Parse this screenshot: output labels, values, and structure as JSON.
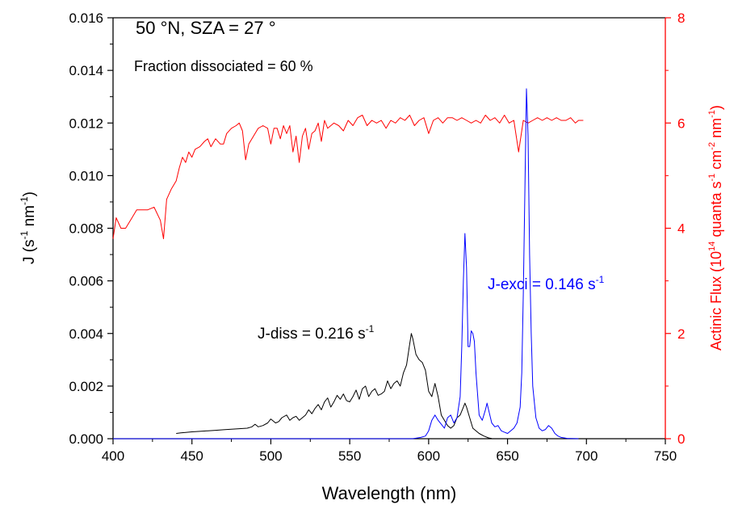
{
  "chart_data": {
    "type": "line",
    "annotations": {
      "title": "50 °N, SZA = 27 °",
      "fraction": "Fraction dissociated = 60 %",
      "jdiss_text": "J-diss = 0.216 s",
      "jdiss_sup": "-1",
      "jexci_text": "J-exci = 0.146 s",
      "jexci_sup": "-1"
    },
    "xaxis": {
      "label": "Wavelength (nm)",
      "lim": [
        400,
        750
      ],
      "ticks": [
        "400",
        "450",
        "500",
        "550",
        "600",
        "650",
        "700",
        "750"
      ]
    },
    "yaxis_left": {
      "label_main": "J (s",
      "label_sup1": "-1",
      "label_mid": " nm",
      "label_sup2": "-1",
      "label_end": ")",
      "lim": [
        0,
        0.016
      ],
      "ticks": [
        "0.000",
        "0.002",
        "0.004",
        "0.006",
        "0.008",
        "0.010",
        "0.012",
        "0.014",
        "0.016"
      ]
    },
    "yaxis_right": {
      "label_a": "Actinic Flux (10",
      "label_sup1": "14",
      "label_b": " quanta s",
      "label_sup2": "-1",
      "label_c": " cm",
      "label_sup3": "-2",
      "label_d": " nm",
      "label_sup4": "-1",
      "label_e": ")",
      "lim": [
        0,
        8
      ],
      "ticks": [
        "0",
        "2",
        "4",
        "6",
        "8"
      ],
      "color": "#ff0000"
    },
    "series": [
      {
        "axis": "right",
        "color": "#ff0000",
        "x": [
          400,
          402,
          405,
          408,
          412,
          415,
          418,
          422,
          426,
          430,
          432,
          434,
          437,
          440,
          442,
          444,
          446,
          448,
          450,
          452,
          455,
          458,
          460,
          462,
          465,
          468,
          470,
          472,
          475,
          478,
          480,
          482,
          484,
          486,
          488,
          490,
          492,
          495,
          498,
          500,
          502,
          504,
          506,
          508,
          510,
          512,
          514,
          516,
          518,
          520,
          522,
          524,
          526,
          528,
          530,
          532,
          534,
          536,
          538,
          540,
          543,
          546,
          549,
          552,
          555,
          558,
          561,
          564,
          567,
          570,
          573,
          576,
          579,
          582,
          585,
          588,
          591,
          594,
          597,
          600,
          603,
          606,
          609,
          612,
          615,
          618,
          621,
          624,
          627,
          630,
          633,
          636,
          639,
          642,
          645,
          648,
          651,
          654,
          657,
          660,
          663,
          666,
          669,
          672,
          675,
          678,
          681,
          684,
          687,
          690,
          693,
          695,
          698
        ],
        "y": [
          3.8,
          4.2,
          4.0,
          4.0,
          4.2,
          4.35,
          4.35,
          4.35,
          4.4,
          4.15,
          3.8,
          4.55,
          4.75,
          4.9,
          5.15,
          5.35,
          5.25,
          5.45,
          5.35,
          5.5,
          5.55,
          5.65,
          5.7,
          5.55,
          5.7,
          5.6,
          5.6,
          5.8,
          5.9,
          5.95,
          6.0,
          5.85,
          5.3,
          5.6,
          5.7,
          5.8,
          5.9,
          5.95,
          5.9,
          5.6,
          5.9,
          5.9,
          5.7,
          5.95,
          5.8,
          5.95,
          5.45,
          5.75,
          5.25,
          5.75,
          5.9,
          5.5,
          5.8,
          5.85,
          6.0,
          5.65,
          6.05,
          5.9,
          5.95,
          6.0,
          5.95,
          5.85,
          6.05,
          5.95,
          6.1,
          6.15,
          5.95,
          6.05,
          6.0,
          6.05,
          5.9,
          6.05,
          6.0,
          6.1,
          6.05,
          6.15,
          5.95,
          6.05,
          6.1,
          5.8,
          6.05,
          6.1,
          6.0,
          6.1,
          6.1,
          6.05,
          6.1,
          6.05,
          6.0,
          6.05,
          6.0,
          6.15,
          6.05,
          6.1,
          6.0,
          6.15,
          6.0,
          6.05,
          5.45,
          6.05,
          6.0,
          6.05,
          6.1,
          6.05,
          6.1,
          6.05,
          6.1,
          6.05,
          6.05,
          6.1,
          6.0,
          6.05,
          6.05
        ]
      },
      {
        "axis": "left",
        "color": "#000000",
        "x": [
          440,
          443,
          446,
          450,
          455,
          460,
          465,
          470,
          475,
          480,
          485,
          488,
          490,
          492,
          495,
          498,
          500,
          503,
          505,
          507,
          510,
          512,
          514,
          516,
          518,
          520,
          522,
          524,
          526,
          528,
          530,
          532,
          534,
          536,
          538,
          540,
          542,
          544,
          546,
          548,
          550,
          552,
          554,
          556,
          558,
          560,
          562,
          564,
          566,
          568,
          570,
          572,
          574,
          576,
          578,
          580,
          582,
          584,
          586,
          588,
          589,
          590,
          592,
          594,
          596,
          598,
          600,
          602,
          604,
          606,
          608,
          610,
          612,
          614,
          616,
          618,
          620,
          622,
          623,
          624,
          626,
          628,
          630,
          632,
          635,
          638,
          640
        ],
        "y": [
          0.0002,
          0.00022,
          0.00024,
          0.00026,
          0.00028,
          0.0003,
          0.00032,
          0.00034,
          0.00036,
          0.00038,
          0.0004,
          0.00045,
          0.00055,
          0.00045,
          0.0005,
          0.0006,
          0.00075,
          0.0006,
          0.00065,
          0.0008,
          0.0009,
          0.0007,
          0.0008,
          0.00085,
          0.0007,
          0.0008,
          0.0009,
          0.0011,
          0.00095,
          0.00115,
          0.0013,
          0.0011,
          0.0014,
          0.00155,
          0.0012,
          0.0014,
          0.00165,
          0.0015,
          0.0017,
          0.00145,
          0.0014,
          0.0016,
          0.00185,
          0.0015,
          0.0019,
          0.002,
          0.0016,
          0.0018,
          0.0019,
          0.00165,
          0.0017,
          0.0018,
          0.0022,
          0.0019,
          0.0021,
          0.0022,
          0.002,
          0.0025,
          0.0028,
          0.0036,
          0.004,
          0.0038,
          0.0032,
          0.003,
          0.0029,
          0.0026,
          0.0018,
          0.0016,
          0.0021,
          0.0016,
          0.0009,
          0.0007,
          0.0005,
          0.0004,
          0.0005,
          0.0008,
          0.0009,
          0.0012,
          0.00135,
          0.0012,
          0.0008,
          0.0004,
          0.0003,
          0.0002,
          0.0001,
          3e-05,
          1e-05
        ]
      },
      {
        "axis": "left",
        "color": "#0000ff",
        "x": [
          400,
          590,
          595,
          598,
          600,
          602,
          604,
          606,
          608,
          610,
          612,
          614,
          616,
          618,
          620,
          621,
          622,
          623,
          624,
          625,
          626,
          627,
          628,
          629,
          630,
          632,
          634,
          636,
          637,
          638,
          640,
          642,
          644,
          646,
          648,
          650,
          652,
          654,
          656,
          658,
          659,
          660,
          661,
          662,
          663,
          664,
          665,
          666,
          668,
          670,
          672,
          674,
          676,
          678,
          680,
          682,
          684,
          686,
          688,
          690,
          695
        ],
        "y": [
          0,
          0,
          5e-05,
          0.0001,
          0.0003,
          0.0007,
          0.0009,
          0.0007,
          0.00055,
          0.0004,
          0.0008,
          0.0009,
          0.0006,
          0.0008,
          0.0016,
          0.0035,
          0.006,
          0.0078,
          0.0065,
          0.0035,
          0.0035,
          0.0041,
          0.004,
          0.0037,
          0.0025,
          0.0009,
          0.0007,
          0.0011,
          0.00135,
          0.0011,
          0.0006,
          0.00045,
          0.0005,
          0.0003,
          0.00025,
          0.0002,
          0.0003,
          0.0004,
          0.0006,
          0.0012,
          0.0025,
          0.0055,
          0.0095,
          0.0133,
          0.0115,
          0.007,
          0.004,
          0.002,
          0.0008,
          0.0004,
          0.0003,
          0.00035,
          0.0005,
          0.0004,
          0.0002,
          0.0001,
          5e-05,
          3e-05,
          1e-05,
          1e-05,
          0
        ]
      }
    ]
  }
}
